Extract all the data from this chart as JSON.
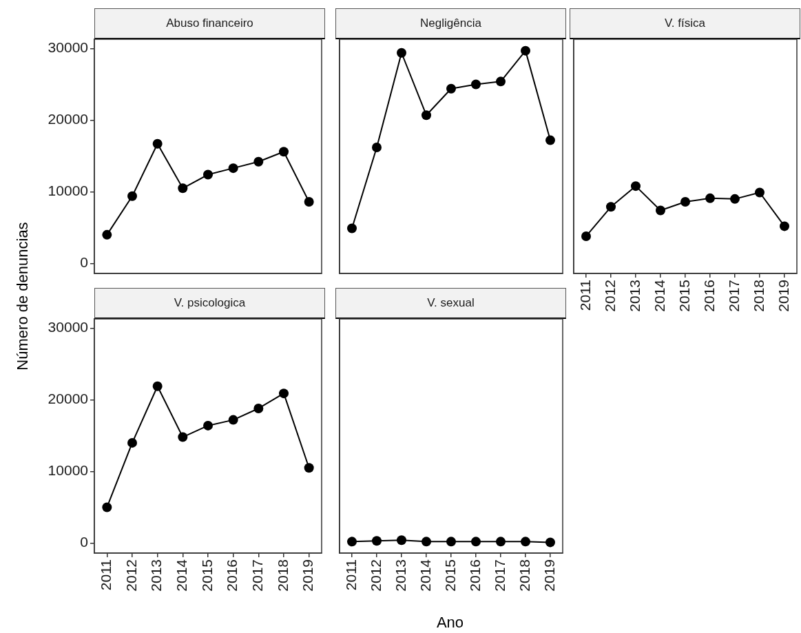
{
  "chart_data": [
    {
      "type": "line",
      "title": "Abuso financeiro",
      "ylabel": "Número de denuncias",
      "categories": [
        "2011",
        "2012",
        "2013",
        "2014",
        "2015",
        "2016",
        "2017",
        "2018",
        "2019"
      ],
      "marker": "circle",
      "ylim": [
        -1400,
        31300
      ],
      "yticks": [
        0,
        10000,
        20000,
        30000
      ],
      "tick_labels": "y",
      "series": [
        {
          "color": "#000000",
          "values": [
            4000,
            9400,
            16700,
            10500,
            12400,
            13300,
            14200,
            15600,
            8600
          ]
        }
      ]
    },
    {
      "type": "line",
      "title": "Negligência",
      "categories": [
        "2011",
        "2012",
        "2013",
        "2014",
        "2015",
        "2016",
        "2017",
        "2018",
        "2019"
      ],
      "marker": "circle",
      "ylim": [
        -1400,
        31300
      ],
      "yticks": [
        0,
        10000,
        20000,
        30000
      ],
      "tick_labels": false,
      "series": [
        {
          "color": "#000000",
          "values": [
            4900,
            16200,
            29400,
            20700,
            24400,
            25000,
            25400,
            29700,
            17200
          ]
        }
      ]
    },
    {
      "type": "line",
      "title": "V. física",
      "categories": [
        "2011",
        "2012",
        "2013",
        "2014",
        "2015",
        "2016",
        "2017",
        "2018",
        "2019"
      ],
      "marker": "circle",
      "ylim": [
        -1400,
        31300
      ],
      "yticks": [
        0,
        10000,
        20000,
        30000
      ],
      "tick_labels": "x",
      "series": [
        {
          "color": "#000000",
          "values": [
            3800,
            7900,
            10800,
            7400,
            8600,
            9100,
            9000,
            9900,
            5200
          ]
        }
      ]
    },
    {
      "type": "line",
      "title": "V. psicologica",
      "categories": [
        "2011",
        "2012",
        "2013",
        "2014",
        "2015",
        "2016",
        "2017",
        "2018",
        "2019"
      ],
      "marker": "circle",
      "ylim": [
        -1400,
        31300
      ],
      "yticks": [
        0,
        10000,
        20000,
        30000
      ],
      "series": [
        {
          "color": "#000000",
          "values": [
            5000,
            14000,
            21900,
            14800,
            16400,
            17200,
            18800,
            20900,
            10500
          ]
        }
      ]
    },
    {
      "type": "line",
      "title": "V. sexual",
      "xlabel": "Ano",
      "categories": [
        "2011",
        "2012",
        "2013",
        "2014",
        "2015",
        "2016",
        "2017",
        "2018",
        "2019"
      ],
      "marker": "circle",
      "ylim": [
        -1400,
        31300
      ],
      "yticks": [
        0,
        10000,
        20000,
        30000
      ],
      "tick_labels": "x",
      "series": [
        {
          "color": "#000000",
          "values": [
            200,
            300,
            400,
            200,
            200,
            200,
            200,
            200,
            100
          ]
        }
      ]
    }
  ]
}
